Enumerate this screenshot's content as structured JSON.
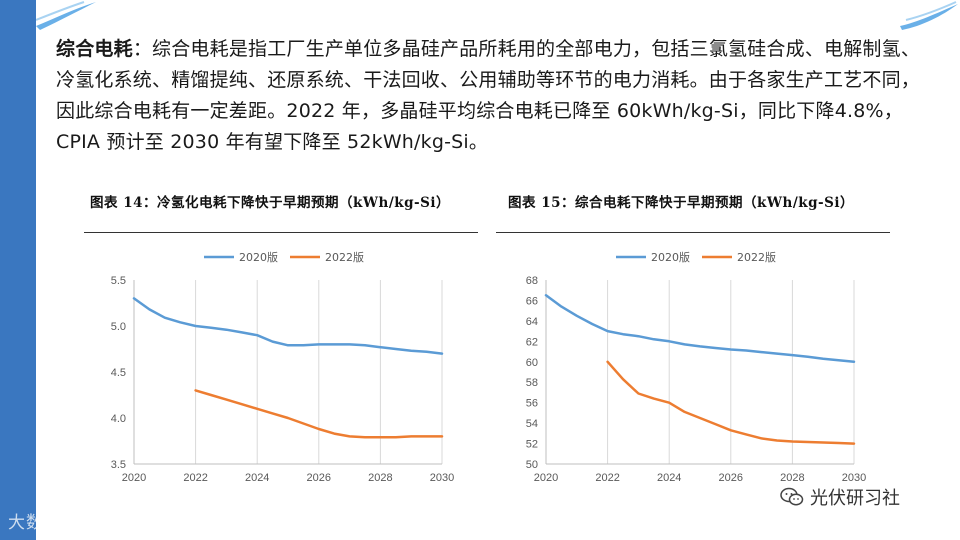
{
  "paragraph": {
    "lead": "综合电耗",
    "text": "：综合电耗是指工厂生产单位多晶硅产品所耗用的全部电力，包括三氯氢硅合成、电解制氢、冷氢化系统、精馏提纯、还原系统、干法回收、公用辅助等环节的电力消耗。由于各家生产工艺不同，因此综合电耗有一定差距。2022 年，多晶硅平均综合电耗已降至 60kWh/kg-Si，同比下降4.8%，CPIA 预计至 2030 年有望下降至 52kWh/kg-Si。"
  },
  "figures": {
    "left_title": "图表 14：冷氢化电耗下降快于早期预期（kWh/kg-Si）",
    "right_title": "图表 15：综合电耗下降快于早期预期（kWh/kg-Si）"
  },
  "watermarks": {
    "left": "大数跨境",
    "right": "光伏研习社"
  },
  "colors": {
    "series_2020": "#5b9bd5",
    "series_2022": "#ed7d31",
    "sidebar": "#3a77c0"
  },
  "chart_data": [
    {
      "type": "line",
      "title": "冷氢化电耗下降快于早期预期（kWh/kg-Si）",
      "xlabel": "",
      "ylabel": "",
      "xlim": [
        2020,
        2030
      ],
      "ylim": [
        3.5,
        5.5
      ],
      "x_ticks": [
        2020,
        2022,
        2024,
        2026,
        2028,
        2030
      ],
      "y_ticks": [
        3.5,
        4.0,
        4.5,
        5.0,
        5.5
      ],
      "y_tick_labels": [
        "3.5",
        "4.0",
        "4.5",
        "5.0",
        "5.5"
      ],
      "grid": "vertical",
      "legend": "top-center",
      "series": [
        {
          "name": "2020版",
          "color": "#5b9bd5",
          "x": [
            2020,
            2020.5,
            2021,
            2021.5,
            2022,
            2022.5,
            2023,
            2023.5,
            2024,
            2024.5,
            2025,
            2025.5,
            2026,
            2026.5,
            2027,
            2027.5,
            2028,
            2028.5,
            2029,
            2029.5,
            2030
          ],
          "y": [
            5.3,
            5.18,
            5.09,
            5.04,
            5.0,
            4.98,
            4.96,
            4.93,
            4.9,
            4.83,
            4.79,
            4.79,
            4.8,
            4.8,
            4.8,
            4.79,
            4.77,
            4.75,
            4.73,
            4.72,
            4.7
          ]
        },
        {
          "name": "2022版",
          "color": "#ed7d31",
          "x": [
            2022,
            2022.5,
            2023,
            2023.5,
            2024,
            2024.5,
            2025,
            2025.5,
            2026,
            2026.5,
            2027,
            2027.5,
            2028,
            2028.5,
            2029,
            2029.5,
            2030
          ],
          "y": [
            4.3,
            4.25,
            4.2,
            4.15,
            4.1,
            4.05,
            4.0,
            3.94,
            3.88,
            3.83,
            3.8,
            3.79,
            3.79,
            3.79,
            3.8,
            3.8,
            3.8
          ]
        }
      ]
    },
    {
      "type": "line",
      "title": "综合电耗下降快于早期预期（kWh/kg-Si）",
      "xlabel": "",
      "ylabel": "",
      "xlim": [
        2020,
        2030
      ],
      "ylim": [
        50,
        68
      ],
      "x_ticks": [
        2020,
        2022,
        2024,
        2026,
        2028,
        2030
      ],
      "y_ticks": [
        50,
        52,
        54,
        56,
        58,
        60,
        62,
        64,
        66,
        68
      ],
      "y_tick_labels": [
        "50",
        "52",
        "54",
        "56",
        "58",
        "60",
        "62",
        "64",
        "66",
        "68"
      ],
      "grid": "vertical",
      "legend": "top-center",
      "series": [
        {
          "name": "2020版",
          "color": "#5b9bd5",
          "x": [
            2020,
            2020.5,
            2021,
            2021.5,
            2022,
            2022.5,
            2023,
            2023.5,
            2024,
            2024.5,
            2025,
            2025.5,
            2026,
            2026.5,
            2027,
            2027.5,
            2028,
            2028.5,
            2029,
            2029.5,
            2030
          ],
          "y": [
            66.5,
            65.4,
            64.5,
            63.7,
            63.0,
            62.7,
            62.5,
            62.2,
            62.0,
            61.7,
            61.5,
            61.35,
            61.2,
            61.1,
            60.95,
            60.8,
            60.65,
            60.5,
            60.3,
            60.15,
            60.0
          ]
        },
        {
          "name": "2022版",
          "color": "#ed7d31",
          "x": [
            2022,
            2022.5,
            2023,
            2023.5,
            2024,
            2024.5,
            2025,
            2025.5,
            2026,
            2026.5,
            2027,
            2027.5,
            2028,
            2028.5,
            2029,
            2029.5,
            2030
          ],
          "y": [
            60.0,
            58.3,
            56.9,
            56.4,
            56.0,
            55.1,
            54.5,
            53.9,
            53.3,
            52.9,
            52.5,
            52.3,
            52.2,
            52.15,
            52.1,
            52.05,
            52.0
          ]
        }
      ]
    }
  ]
}
